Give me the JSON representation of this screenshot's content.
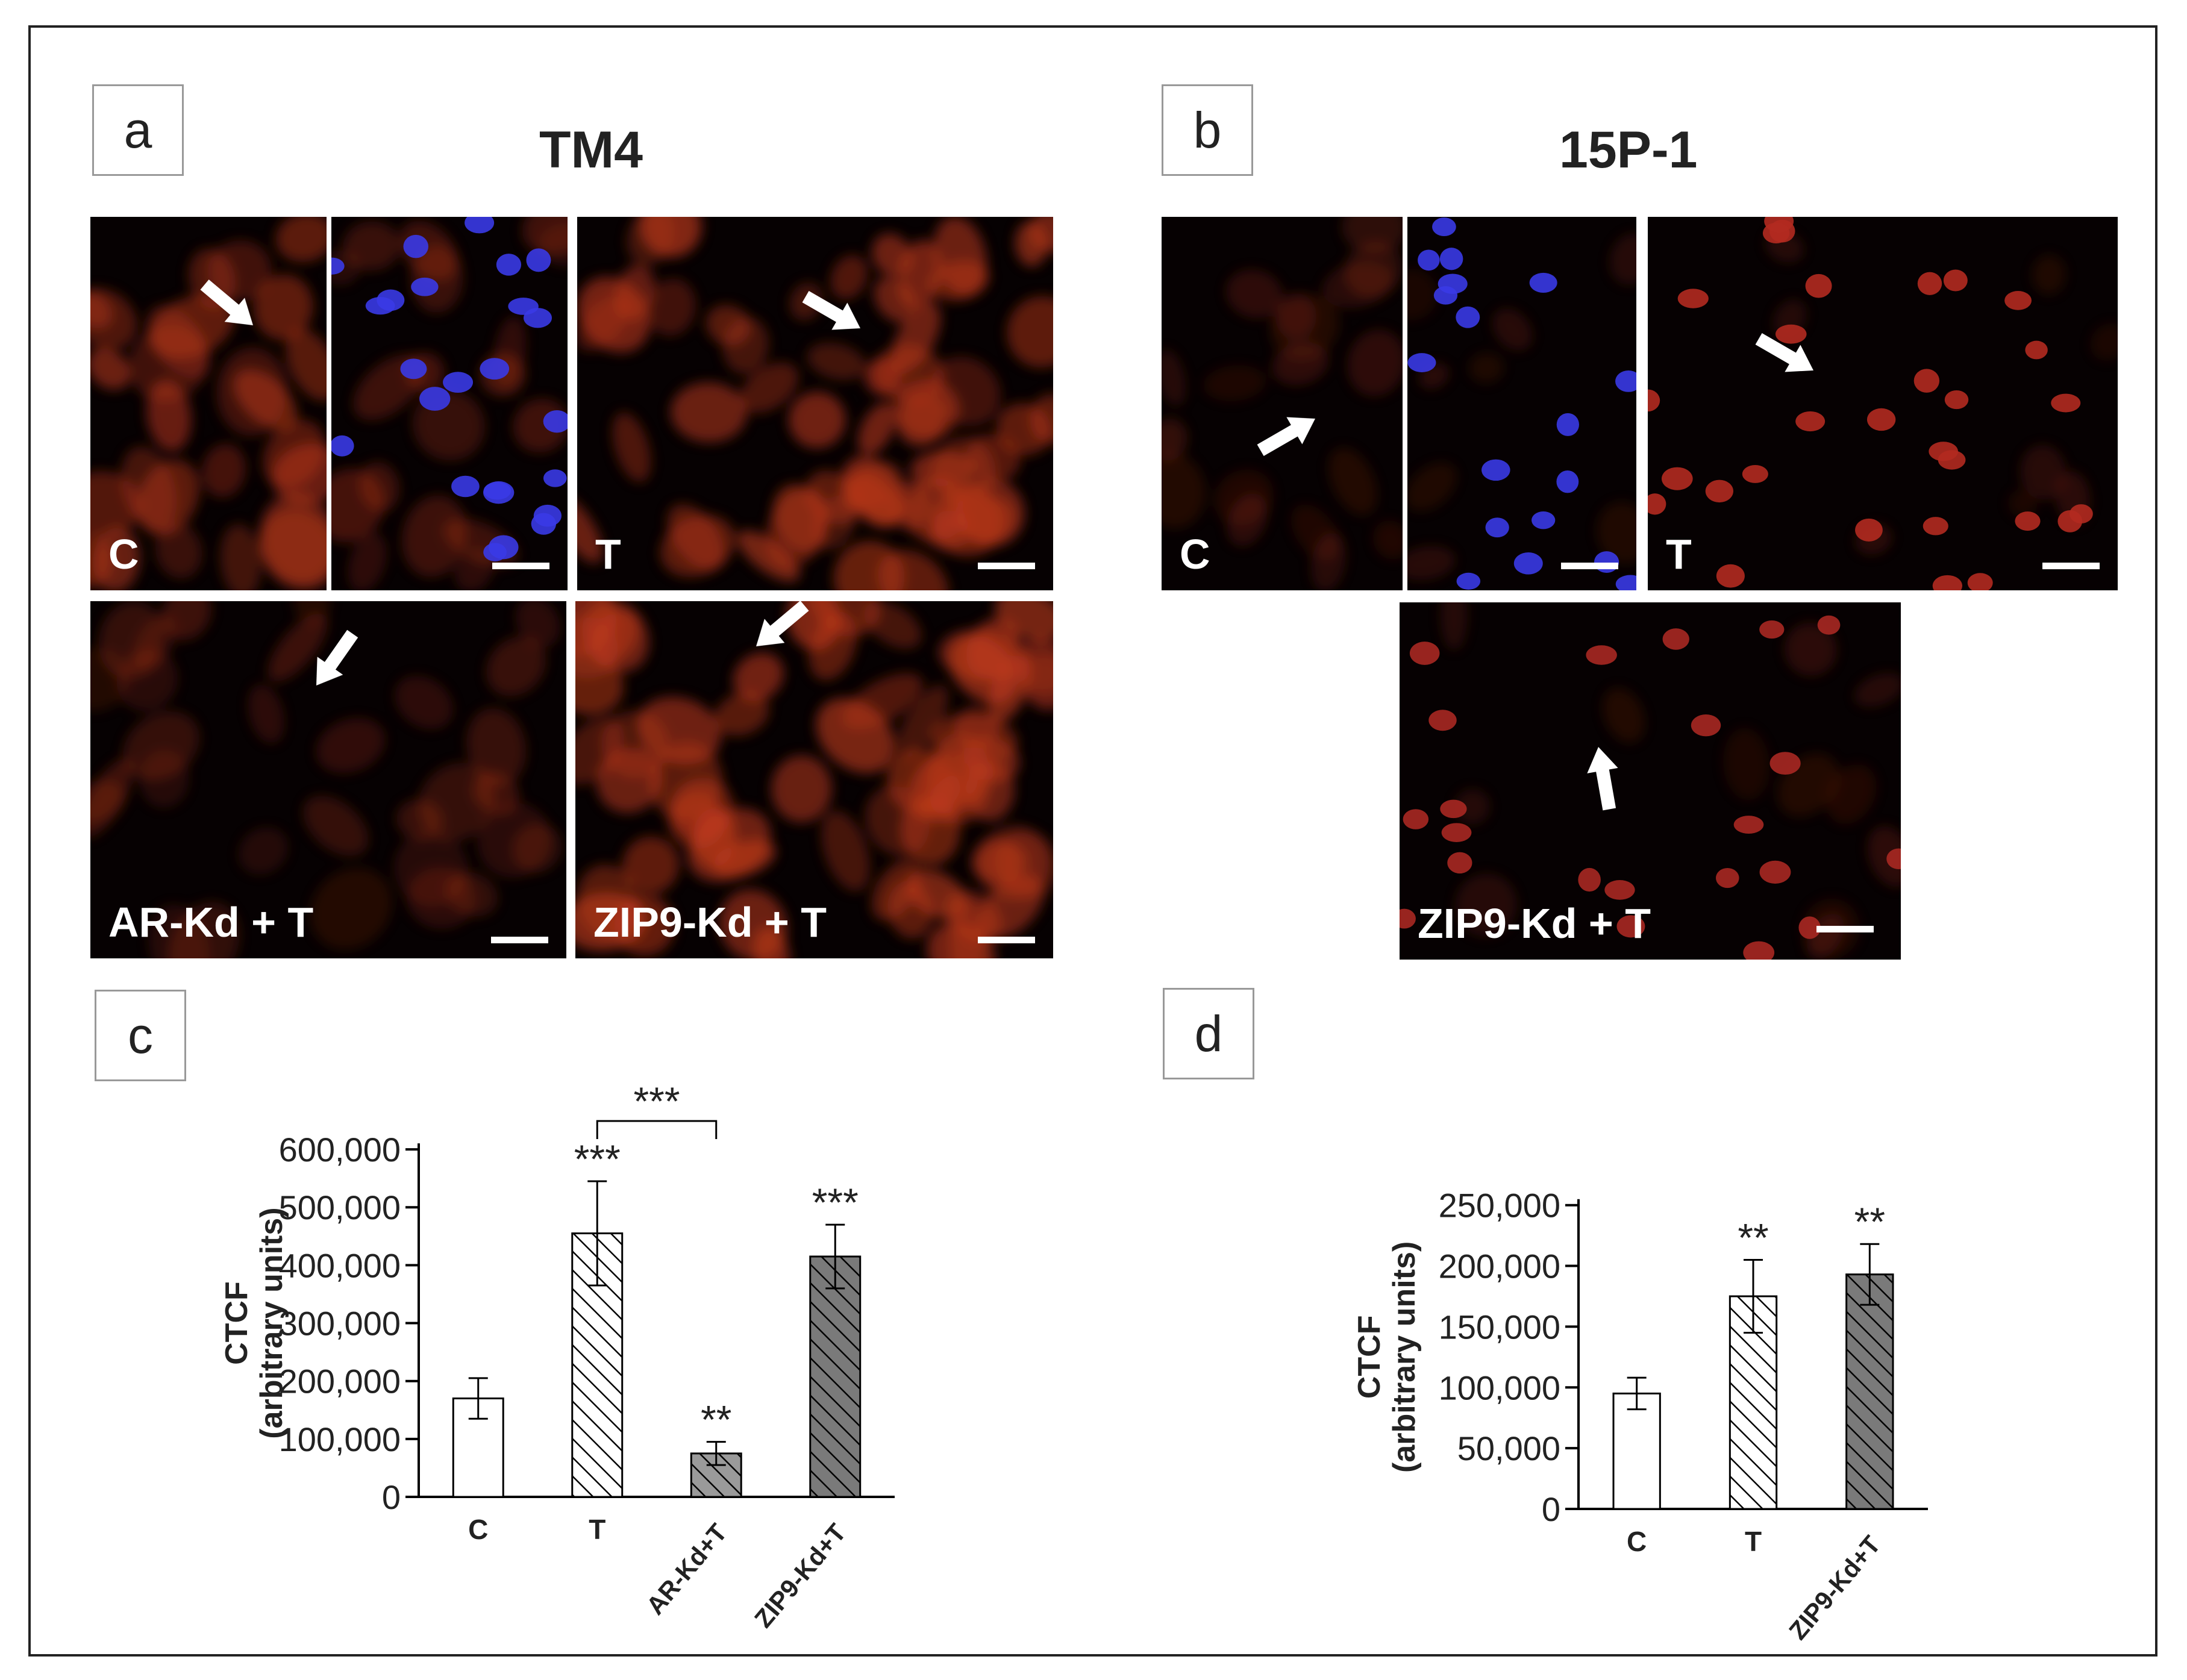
{
  "panels": {
    "a": {
      "letter": "a",
      "title": "TM4",
      "labels": {
        "control": "C",
        "testosterone": "T",
        "ar_kd": "AR-Kd + T",
        "zip9_kd": "ZIP9-Kd + T"
      }
    },
    "b": {
      "letter": "b",
      "title": "15P-1",
      "labels": {
        "control": "C",
        "testosterone": "T",
        "zip9_kd": "ZIP9-Kd + T"
      }
    },
    "c": {
      "letter": "c"
    },
    "d": {
      "letter": "d"
    }
  },
  "colors": {
    "stain_red": "#c03a1c",
    "stain_blue": "#3a3ae6",
    "hatch_gray": "#9a9a9a",
    "dark_hatch_gray": "#7a7a7a"
  },
  "icons": [
    "arrow-icon",
    "scale-bar"
  ],
  "chart_data": [
    {
      "type": "bar",
      "panel": "c",
      "categories": [
        "C",
        "T",
        "AR-Kd+T",
        "ZIP9-Kd+T"
      ],
      "values": [
        170000,
        455000,
        75000,
        415000
      ],
      "errors": [
        35000,
        90000,
        20000,
        55000
      ],
      "significance": [
        "",
        "***",
        "**",
        "***"
      ],
      "bracket": {
        "from": "T",
        "to": "AR-Kd+T",
        "label": "***"
      },
      "ylabel": "CTCF",
      "ylabel2": "(arbitrary units)",
      "yticks": [
        "0",
        "100,000",
        "200,000",
        "300,000",
        "400,000",
        "500,000",
        "600,000"
      ],
      "ytick_values": [
        0,
        100000,
        200000,
        300000,
        400000,
        500000,
        600000
      ],
      "ylim": [
        0,
        650000
      ],
      "fills": [
        "white",
        "hatch",
        "hatch-light-gray",
        "hatch-dark-gray"
      ]
    },
    {
      "type": "bar",
      "panel": "d",
      "categories": [
        "C",
        "T",
        "ZIP9-Kd+T"
      ],
      "values": [
        95000,
        175000,
        193000
      ],
      "errors": [
        13000,
        30000,
        25000
      ],
      "significance": [
        "",
        "**",
        "**"
      ],
      "ylabel": "CTCF",
      "ylabel2": "(arbitrary units)",
      "yticks": [
        "0",
        "50,000",
        "100,000",
        "150,000",
        "200,000",
        "250,000"
      ],
      "ytick_values": [
        0,
        50000,
        100000,
        150000,
        200000,
        250000
      ],
      "ylim": [
        0,
        290000
      ],
      "fills": [
        "white",
        "hatch",
        "hatch-dark-gray"
      ]
    }
  ]
}
